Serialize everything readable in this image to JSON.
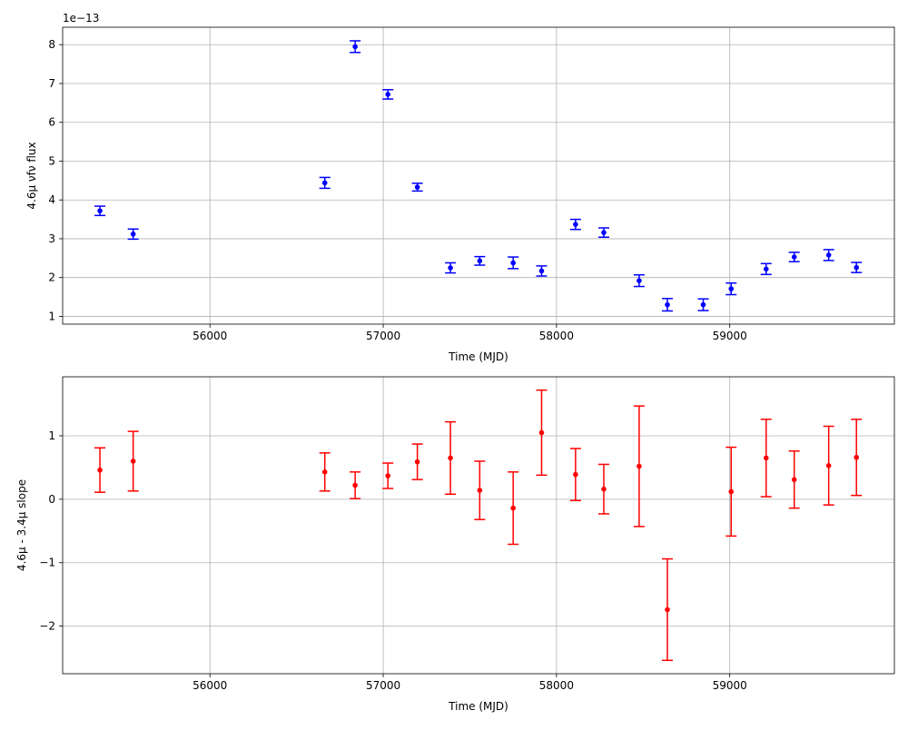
{
  "chart_data": [
    {
      "type": "scatter",
      "xlabel": "Time (MJD)",
      "ylabel": "4.6μ νfν flux",
      "offset_label": "1e−13",
      "xlim": [
        55150,
        59950
      ],
      "ylim": [
        0.8,
        8.45
      ],
      "xticks": [
        56000,
        57000,
        58000,
        59000
      ],
      "xtick_labels": [
        "56000",
        "57000",
        "58000",
        "59000"
      ],
      "yticks": [
        1,
        2,
        3,
        4,
        5,
        6,
        7,
        8
      ],
      "ytick_labels": [
        "1",
        "2",
        "3",
        "4",
        "5",
        "6",
        "7",
        "8"
      ],
      "grid": true,
      "color": "#0000ff",
      "series": [
        {
          "x": [
            55365,
            55557,
            56663,
            56838,
            57027,
            57197,
            57388,
            57557,
            57750,
            57914,
            58110,
            58273,
            58477,
            58640,
            58847,
            59008,
            59210,
            59372,
            59571,
            59731
          ],
          "y": [
            3.72,
            3.12,
            4.44,
            7.95,
            6.72,
            4.33,
            2.25,
            2.43,
            2.38,
            2.17,
            3.37,
            3.16,
            1.92,
            1.3,
            1.3,
            1.71,
            2.22,
            2.53,
            2.58,
            2.26
          ],
          "yerr": [
            0.12,
            0.13,
            0.14,
            0.15,
            0.12,
            0.1,
            0.13,
            0.11,
            0.15,
            0.13,
            0.13,
            0.12,
            0.15,
            0.16,
            0.15,
            0.15,
            0.14,
            0.12,
            0.14,
            0.13
          ]
        }
      ]
    },
    {
      "type": "scatter",
      "xlabel": "Time (MJD)",
      "ylabel": "4.6μ - 3.4μ slope",
      "xlim": [
        55150,
        59950
      ],
      "ylim": [
        -2.75,
        1.93
      ],
      "xticks": [
        56000,
        57000,
        58000,
        59000
      ],
      "xtick_labels": [
        "56000",
        "57000",
        "58000",
        "59000"
      ],
      "yticks": [
        -2,
        -1,
        0,
        1
      ],
      "ytick_labels": [
        "−2",
        "−1",
        "0",
        "1"
      ],
      "grid": true,
      "color": "#ff0000",
      "series": [
        {
          "x": [
            55365,
            55557,
            56663,
            56838,
            57027,
            57197,
            57388,
            57557,
            57750,
            57914,
            58110,
            58273,
            58477,
            58640,
            59008,
            59210,
            59372,
            59571,
            59731
          ],
          "y": [
            0.46,
            0.6,
            0.43,
            0.22,
            0.37,
            0.59,
            0.65,
            0.14,
            -0.14,
            1.05,
            0.39,
            0.16,
            0.52,
            -1.74,
            0.12,
            0.65,
            0.31,
            0.53,
            0.66
          ],
          "yerr": [
            0.35,
            0.47,
            0.3,
            0.21,
            0.2,
            0.28,
            0.57,
            0.46,
            0.57,
            0.67,
            0.41,
            0.39,
            0.95,
            0.8,
            0.7,
            0.61,
            0.45,
            0.62,
            0.6
          ]
        }
      ]
    }
  ]
}
